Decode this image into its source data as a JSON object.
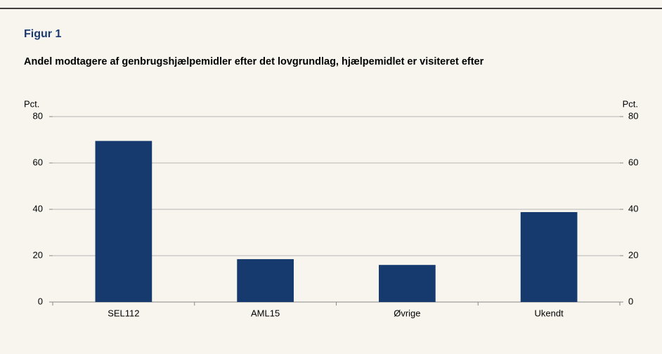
{
  "chart_data": {
    "type": "bar",
    "title": "Figur 1",
    "subtitle": "Andel modtagere af genbrugshjælpemidler efter det lovgrundlag, hjælpemidlet er visiteret efter",
    "y_label": "Pct.",
    "y2_label": "Pct.",
    "categories": [
      "SEL112",
      "AML15",
      "Øvrige",
      "Ukendt"
    ],
    "values": [
      69.5,
      18.5,
      16,
      38.8
    ],
    "color": "#163a6e",
    "ylim": [
      0,
      80
    ],
    "yticks": [
      0,
      20,
      40,
      60,
      80
    ],
    "y2lim": [
      0,
      80
    ],
    "y2ticks": [
      0,
      20,
      40,
      60,
      80
    ],
    "grid": true
  }
}
